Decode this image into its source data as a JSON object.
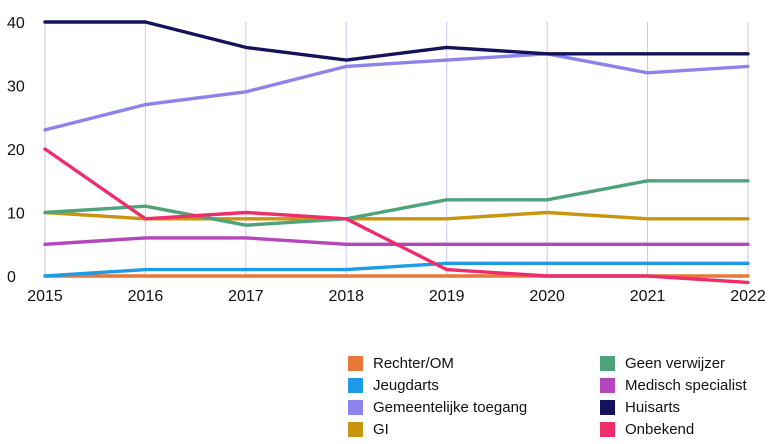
{
  "chart_data": {
    "type": "line",
    "x": [
      "2015",
      "2016",
      "2017",
      "2018",
      "2019",
      "2020",
      "2021",
      "2022"
    ],
    "ylim": [
      0,
      40
    ],
    "y_ticks": [
      "0",
      "10",
      "20",
      "30",
      "40"
    ],
    "grid": "vertical",
    "legend_position": "bottom-right",
    "series": [
      {
        "name": "Rechter/OM",
        "color": "#e8773a",
        "values": [
          0,
          0,
          0,
          0,
          0,
          0,
          0,
          0
        ]
      },
      {
        "name": "Jeugdarts",
        "color": "#1e9be8",
        "values": [
          0,
          1,
          1,
          1,
          2,
          2,
          2,
          2
        ]
      },
      {
        "name": "Gemeentelijke toegang",
        "color": "#8c84ec",
        "values": [
          23,
          27,
          29,
          33,
          34,
          35,
          32,
          33
        ]
      },
      {
        "name": "GI",
        "color": "#c9940e",
        "values": [
          10,
          9,
          9,
          9,
          9,
          10,
          9,
          9
        ]
      },
      {
        "name": "Geen verwijzer",
        "color": "#4fa37a",
        "values": [
          10,
          11,
          8,
          9,
          12,
          12,
          15,
          15
        ]
      },
      {
        "name": "Medisch specialist",
        "color": "#b445bd",
        "values": [
          5,
          6,
          6,
          5,
          5,
          5,
          5,
          5
        ]
      },
      {
        "name": "Huisarts",
        "color": "#14125a",
        "values": [
          40,
          40,
          36,
          34,
          36,
          35,
          35,
          35
        ]
      },
      {
        "name": "Onbekend",
        "color": "#f02d6b",
        "values": [
          20,
          9,
          10,
          9,
          1,
          0,
          0,
          -1
        ]
      }
    ]
  }
}
